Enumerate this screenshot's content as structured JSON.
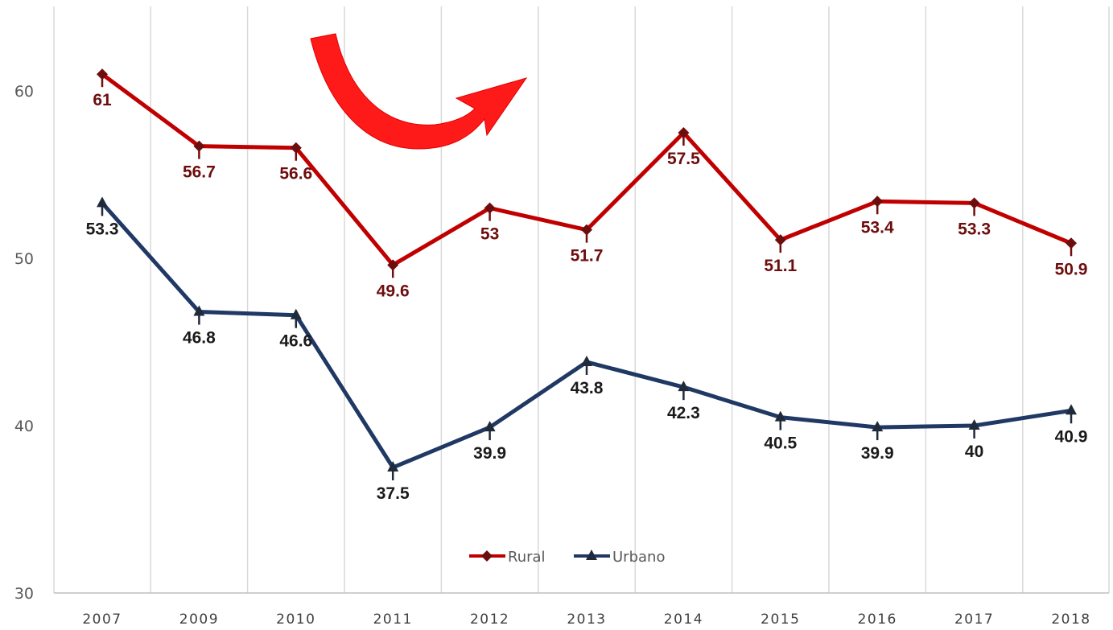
{
  "chart_data": {
    "type": "line",
    "title": "",
    "xlabel": "",
    "ylabel": "",
    "categories": [
      "2007",
      "2009",
      "2010",
      "2011",
      "2012",
      "2013",
      "2014",
      "2015",
      "2016",
      "2017",
      "2018"
    ],
    "ylim": [
      30,
      65
    ],
    "yticks": [
      30,
      40,
      50,
      60
    ],
    "grid": "vertical",
    "legend": "bottom-center",
    "series": [
      {
        "name": "Rural",
        "values": [
          61,
          56.7,
          56.6,
          49.6,
          53,
          51.7,
          57.5,
          51.1,
          53.4,
          53.3,
          50.9
        ],
        "labels": [
          "61",
          "56.7",
          "56.6",
          "49.6",
          "53",
          "51.7",
          "57.5",
          "51.1",
          "53.4",
          "53.3",
          "50.9"
        ],
        "color": "#c00000",
        "marker_color": "#6e0d0d",
        "label_color": "#6e0d0d",
        "marker": "diamond"
      },
      {
        "name": "Urbano",
        "values": [
          53.3,
          46.8,
          46.6,
          37.5,
          39.9,
          43.8,
          42.3,
          40.5,
          39.9,
          40,
          40.9
        ],
        "labels": [
          "53.3",
          "46.8",
          "46.6",
          "37.5",
          "39.9",
          "43.8",
          "42.3",
          "40.5",
          "39.9",
          "40",
          "40.9"
        ],
        "color": "#203864",
        "marker_color": "#1f2a3a",
        "label_color": "#1a1a1a",
        "marker": "triangle"
      }
    ],
    "annotation": {
      "type": "curved-arrow",
      "color": "#ff1a1a"
    }
  }
}
